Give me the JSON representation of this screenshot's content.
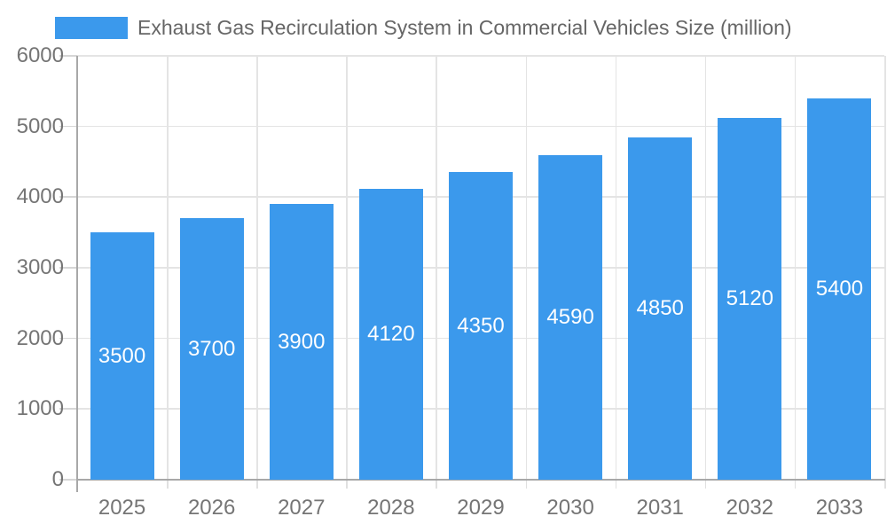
{
  "chart_data": {
    "type": "bar",
    "title": "Exhaust Gas Recirculation System in Commercial Vehicles Size (million)",
    "categories": [
      "2025",
      "2026",
      "2027",
      "2028",
      "2029",
      "2030",
      "2031",
      "2032",
      "2033"
    ],
    "series": [
      {
        "name": "Exhaust Gas Recirculation System in Commercial Vehicles Size (million)",
        "values": [
          3500,
          3700,
          3900,
          4120,
          4350,
          4590,
          4850,
          5120,
          5400
        ]
      }
    ],
    "bar_value_labels": [
      3500,
      3700,
      3900,
      4120,
      4350,
      4590,
      4850,
      5120,
      5400
    ],
    "xlabel": "",
    "ylabel": "",
    "ylim": [
      0,
      6000
    ],
    "yticks": [
      0,
      1000,
      2000,
      3000,
      4000,
      5000,
      6000
    ],
    "grid": true,
    "legend_position": "top-center",
    "colors": {
      "bar": "#3b99ec",
      "bar_label_text": "#ffffff",
      "axis_line": "#a8a8a8",
      "gridline": "#e4e4e4",
      "y_tick": "#d6d6d6",
      "x_tick": "#e0e0e0",
      "axis_text": "#757575",
      "legend_text": "#666666",
      "background": "#ffffff"
    }
  }
}
